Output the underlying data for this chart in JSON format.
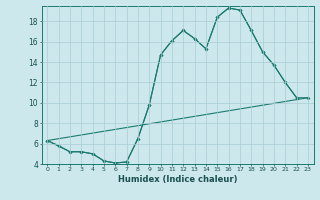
{
  "title": "",
  "xlabel": "Humidex (Indice chaleur)",
  "background_color": "#cce8ec",
  "grid_color": "#aaccd4",
  "line_color": "#1a7a6e",
  "xlim": [
    -0.5,
    23.5
  ],
  "ylim": [
    4,
    19.5
  ],
  "yticks": [
    4,
    6,
    8,
    10,
    12,
    14,
    16,
    18
  ],
  "xticks": [
    0,
    1,
    2,
    3,
    4,
    5,
    6,
    7,
    8,
    9,
    10,
    11,
    12,
    13,
    14,
    15,
    16,
    17,
    18,
    19,
    20,
    21,
    22,
    23
  ],
  "line1_x": [
    0,
    1,
    2,
    3,
    4,
    5,
    6,
    7,
    8,
    9,
    10,
    11,
    12,
    13,
    14,
    15,
    16,
    17,
    18,
    19,
    20,
    21,
    22
  ],
  "line1_y": [
    6.3,
    5.8,
    5.2,
    5.2,
    5.0,
    4.3,
    4.1,
    4.2,
    6.5,
    9.8,
    14.7,
    16.1,
    17.1,
    16.3,
    15.3,
    18.4,
    19.3,
    19.1,
    17.1,
    15.0,
    13.7,
    12.0,
    10.5
  ],
  "line2_x": [
    0,
    2,
    3,
    4,
    5,
    6,
    7,
    8,
    9,
    10,
    11,
    12,
    13,
    14,
    15,
    16,
    17,
    18,
    19,
    20,
    21,
    22,
    23
  ],
  "line2_y": [
    6.3,
    5.2,
    5.2,
    5.0,
    4.3,
    4.1,
    4.2,
    6.5,
    9.8,
    14.7,
    16.1,
    17.1,
    16.3,
    15.3,
    18.4,
    19.3,
    19.1,
    17.1,
    15.0,
    13.7,
    12.0,
    10.5,
    10.5
  ],
  "line3_x": [
    0,
    23
  ],
  "line3_y": [
    6.3,
    10.5
  ],
  "xlabel_fontsize": 6,
  "tick_fontsize_x": 4.5,
  "tick_fontsize_y": 5.5,
  "linewidth": 0.8,
  "markersize": 2.0
}
